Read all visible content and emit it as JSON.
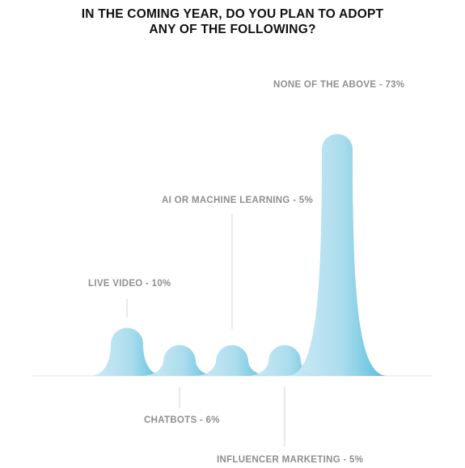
{
  "title": {
    "line1": "IN THE COMING YEAR, DO YOU PLAN TO ADOPT",
    "line2": "ANY OF THE FOLLOWING?"
  },
  "colors": {
    "peak_light": "#cfeaf5",
    "peak_dark": "#48b9d9",
    "overlap_dark": "#2e9fc4",
    "leader_line": "#d6d6d6",
    "baseline": "#e6e6e6",
    "label_text": "#8f8f8f"
  },
  "chart_data": {
    "type": "area",
    "title": "IN THE COMING YEAR, DO YOU PLAN TO ADOPT ANY OF THE FOLLOWING?",
    "unit": "%",
    "categories": [
      "LIVE VIDEO",
      "CHATBOTS",
      "AI OR MACHINE LEARNING",
      "INFLUENCER MARKETING",
      "NONE OF THE ABOVE"
    ],
    "values": [
      10,
      6,
      5,
      5,
      73
    ],
    "labels": [
      {
        "name": "LIVE VIDEO",
        "value_text": "- 10%",
        "position": "above"
      },
      {
        "name": "CHATBOTS",
        "value_text": "- 6%",
        "position": "below"
      },
      {
        "name": "AI OR MACHINE LEARNING",
        "value_text": "- 5%",
        "position": "above"
      },
      {
        "name": "INFLUENCER MARKETING",
        "value_text": "- 5%",
        "position": "below"
      },
      {
        "name": "NONE OF THE ABOVE",
        "value_text": "- 73%",
        "position": "above"
      }
    ]
  }
}
